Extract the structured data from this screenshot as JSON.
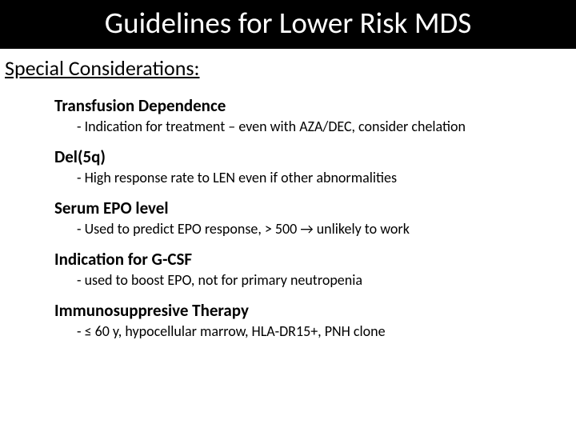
{
  "title": "Guidelines for Lower Risk MDS",
  "subtitle": "Special Considerations:",
  "items": [
    {
      "heading": "Transfusion Dependence",
      "desc": "- Indication for treatment – even with AZA/DEC, consider chelation"
    },
    {
      "heading": "Del(5q)",
      "desc": "- High response rate to LEN even if other abnormalities"
    },
    {
      "heading": "Serum EPO level",
      "desc": "- Used to predict EPO response, > 500 → unlikely to work"
    },
    {
      "heading": "Indication for G-CSF",
      "desc": "- used to boost EPO, not for primary neutropenia"
    },
    {
      "heading": "Immunosuppresive Therapy",
      "desc": "- ≤ 60 y, hypocellular marrow, HLA-DR15+, PNH clone"
    }
  ],
  "colors": {
    "title_bg": "#000000",
    "title_fg": "#ffffff",
    "text": "#000000",
    "page_bg": "#ffffff"
  },
  "typography": {
    "title_fontsize": 37,
    "subtitle_fontsize": 26,
    "heading_fontsize": 21,
    "desc_fontsize": 18,
    "font_family": "Calibri"
  }
}
